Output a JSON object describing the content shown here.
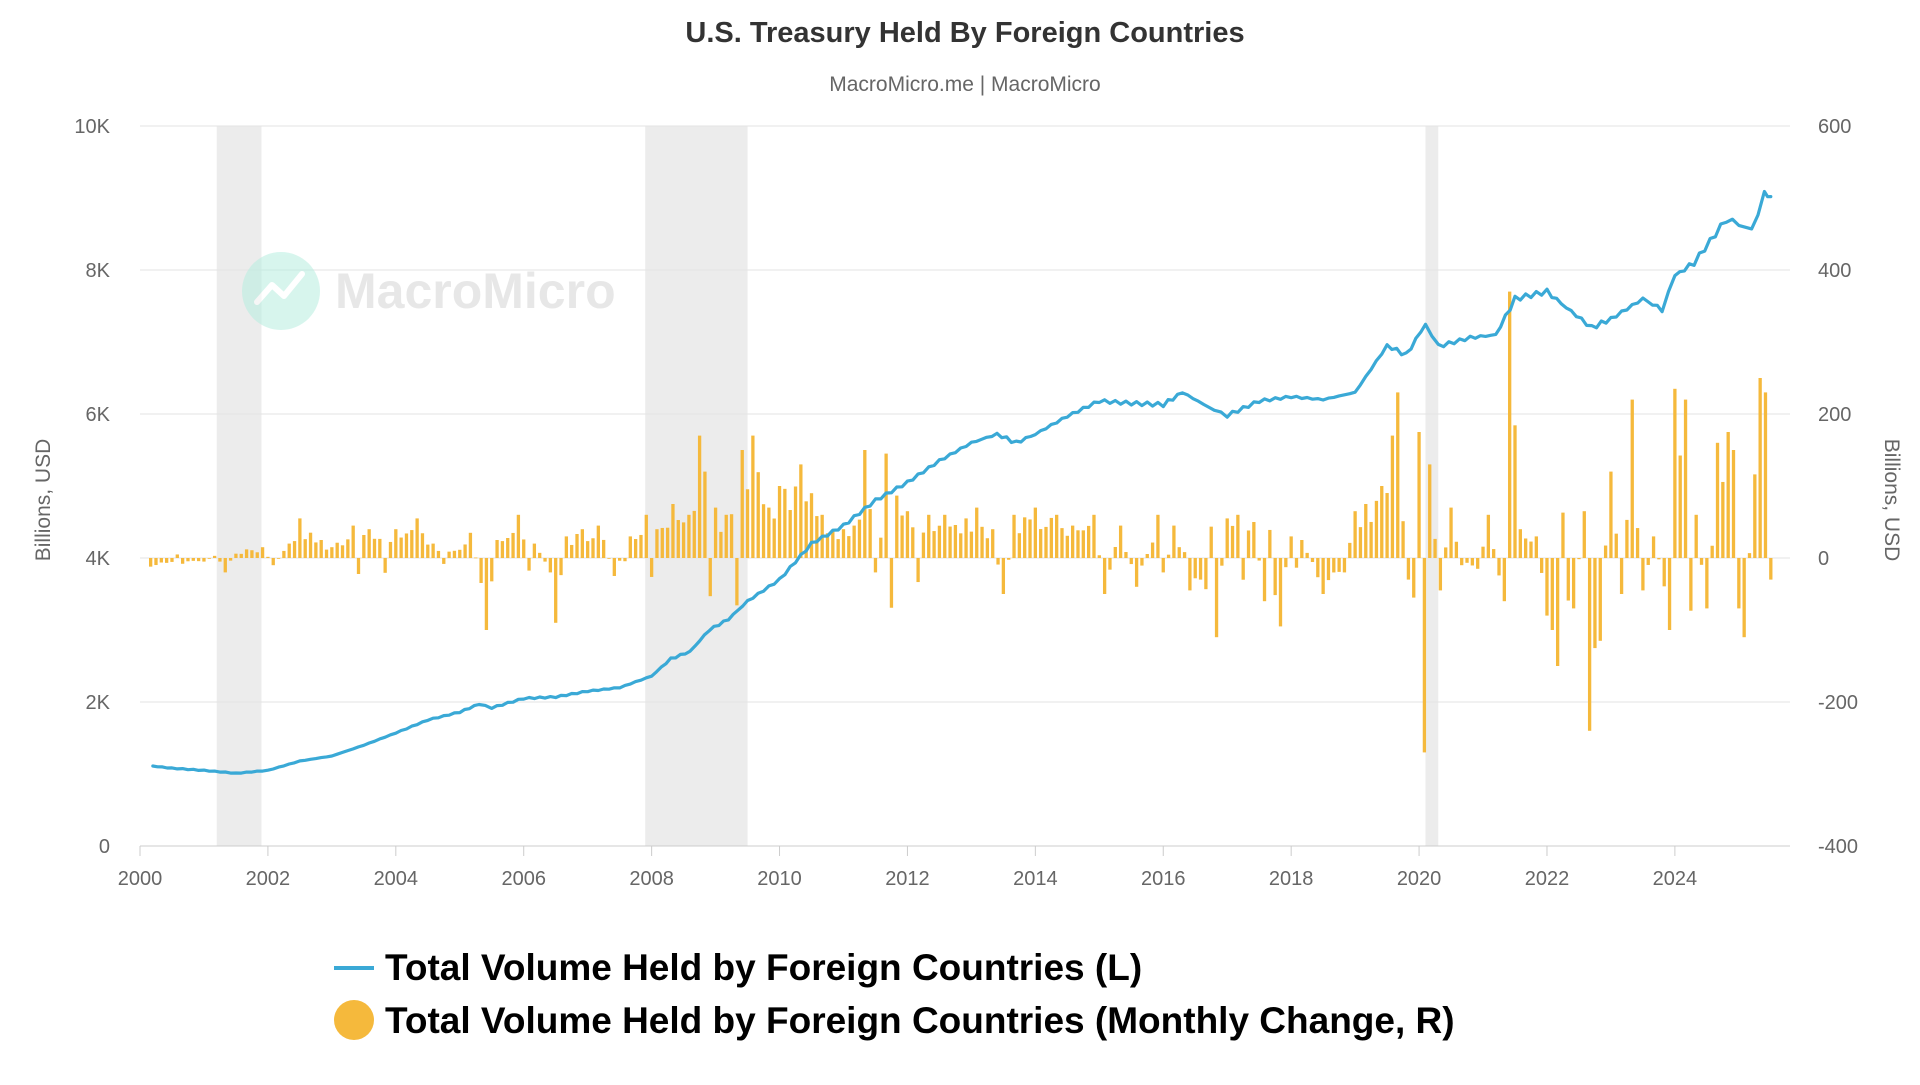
{
  "chart_data": {
    "type": "bar+line",
    "title": "U.S. Treasury Held By Foreign Countries",
    "subtitle": "MacroMicro.me | MacroMicro",
    "watermark": "MacroMicro",
    "y_left": {
      "label": "Billions, USD",
      "lim": [
        0,
        10000
      ],
      "ticks": [
        0,
        2000,
        4000,
        6000,
        8000,
        10000
      ],
      "tick_labels": [
        "0",
        "2K",
        "4K",
        "6K",
        "8K",
        "10K"
      ]
    },
    "y_right": {
      "label": "Billions, USD",
      "lim": [
        -400,
        600
      ],
      "ticks": [
        -400,
        -200,
        0,
        200,
        400,
        600
      ],
      "tick_labels": [
        "-400",
        "-200",
        "0",
        "200",
        "400",
        "600"
      ]
    },
    "x": {
      "lim": [
        2000.0,
        2025.8
      ],
      "ticks": [
        2000,
        2002,
        2004,
        2006,
        2008,
        2010,
        2012,
        2014,
        2016,
        2018,
        2020,
        2022,
        2024
      ],
      "tick_labels": [
        "2000",
        "2002",
        "2004",
        "2006",
        "2008",
        "2010",
        "2012",
        "2014",
        "2016",
        "2018",
        "2020",
        "2022",
        "2024"
      ]
    },
    "recessions": [
      {
        "start": 2001.2,
        "end": 2001.9
      },
      {
        "start": 2007.9,
        "end": 2009.5
      },
      {
        "start": 2020.1,
        "end": 2020.3
      }
    ],
    "legend": {
      "placement": "bottom",
      "line_label": "Total Volume Held by Foreign Countries (L)",
      "bar_label": "Total Volume Held by Foreign Countries (Monthly Change, R)"
    },
    "colors": {
      "line": "#3aa9d6",
      "bar": "#f5b93c",
      "recession": "#ececec",
      "grid": "#e3e3e3",
      "text": "#666666",
      "title": "#333333"
    },
    "line_series": {
      "name": "Total Volume Held by Foreign Countries (L)",
      "points": [
        [
          2000.2,
          1110
        ],
        [
          2000.5,
          1080
        ],
        [
          2001.0,
          1050
        ],
        [
          2001.5,
          1010
        ],
        [
          2002.0,
          1050
        ],
        [
          2002.5,
          1180
        ],
        [
          2003.0,
          1250
        ],
        [
          2003.5,
          1400
        ],
        [
          2004.0,
          1570
        ],
        [
          2004.5,
          1750
        ],
        [
          2005.0,
          1860
        ],
        [
          2005.3,
          1970
        ],
        [
          2005.5,
          1920
        ],
        [
          2006.0,
          2050
        ],
        [
          2006.5,
          2070
        ],
        [
          2007.0,
          2150
        ],
        [
          2007.5,
          2200
        ],
        [
          2008.0,
          2360
        ],
        [
          2008.3,
          2600
        ],
        [
          2008.6,
          2700
        ],
        [
          2008.9,
          3000
        ],
        [
          2009.2,
          3150
        ],
        [
          2009.5,
          3400
        ],
        [
          2010.0,
          3700
        ],
        [
          2010.5,
          4200
        ],
        [
          2011.0,
          4450
        ],
        [
          2011.5,
          4800
        ],
        [
          2012.0,
          5050
        ],
        [
          2012.5,
          5350
        ],
        [
          2013.0,
          5600
        ],
        [
          2013.4,
          5720
        ],
        [
          2013.7,
          5600
        ],
        [
          2014.0,
          5720
        ],
        [
          2014.5,
          5970
        ],
        [
          2015.0,
          6180
        ],
        [
          2015.5,
          6150
        ],
        [
          2016.0,
          6130
        ],
        [
          2016.3,
          6300
        ],
        [
          2016.8,
          6050
        ],
        [
          2017.0,
          5980
        ],
        [
          2017.5,
          6180
        ],
        [
          2018.0,
          6240
        ],
        [
          2018.5,
          6200
        ],
        [
          2019.0,
          6300
        ],
        [
          2019.5,
          6950
        ],
        [
          2019.8,
          6820
        ],
        [
          2020.1,
          7250
        ],
        [
          2020.3,
          6940
        ],
        [
          2020.8,
          7060
        ],
        [
          2021.2,
          7100
        ],
        [
          2021.5,
          7600
        ],
        [
          2022.0,
          7700
        ],
        [
          2022.3,
          7480
        ],
        [
          2022.7,
          7200
        ],
        [
          2023.0,
          7320
        ],
        [
          2023.5,
          7600
        ],
        [
          2023.8,
          7450
        ],
        [
          2024.0,
          7920
        ],
        [
          2024.3,
          8100
        ],
        [
          2024.8,
          8700
        ],
        [
          2025.0,
          8640
        ],
        [
          2025.2,
          8550
        ],
        [
          2025.4,
          9050
        ],
        [
          2025.5,
          9020
        ]
      ]
    },
    "bar_series": {
      "name": "Total Volume Held by Foreign Countries (Monthly Change, R)",
      "anchors": [
        [
          2000.2,
          -12
        ],
        [
          2000.7,
          -8
        ],
        [
          2001.0,
          -5
        ],
        [
          2001.2,
          3
        ],
        [
          2001.3,
          -20
        ],
        [
          2001.5,
          6
        ],
        [
          2001.7,
          12
        ],
        [
          2001.9,
          15
        ],
        [
          2002.1,
          -10
        ],
        [
          2002.3,
          20
        ],
        [
          2002.5,
          55
        ],
        [
          2002.8,
          25
        ],
        [
          2003.0,
          15
        ],
        [
          2003.3,
          45
        ],
        [
          2003.6,
          40
        ],
        [
          2004.0,
          40
        ],
        [
          2004.3,
          55
        ],
        [
          2004.6,
          20
        ],
        [
          2004.9,
          10
        ],
        [
          2005.2,
          35
        ],
        [
          2005.4,
          -100
        ],
        [
          2005.6,
          25
        ],
        [
          2005.9,
          60
        ],
        [
          2006.2,
          20
        ],
        [
          2006.4,
          -20
        ],
        [
          2006.5,
          -90
        ],
        [
          2006.7,
          30
        ],
        [
          2006.9,
          40
        ],
        [
          2007.2,
          45
        ],
        [
          2007.4,
          -25
        ],
        [
          2007.7,
          30
        ],
        [
          2007.9,
          60
        ],
        [
          2008.1,
          40
        ],
        [
          2008.3,
          75
        ],
        [
          2008.6,
          60
        ],
        [
          2008.75,
          170
        ],
        [
          2008.85,
          120
        ],
        [
          2009.0,
          70
        ],
        [
          2009.2,
          60
        ],
        [
          2009.4,
          150
        ],
        [
          2009.6,
          170
        ],
        [
          2009.8,
          70
        ],
        [
          2010.0,
          100
        ],
        [
          2010.3,
          130
        ],
        [
          2010.5,
          90
        ],
        [
          2010.7,
          60
        ],
        [
          2011.0,
          40
        ],
        [
          2011.2,
          45
        ],
        [
          2011.35,
          150
        ],
        [
          2011.5,
          -20
        ],
        [
          2011.7,
          145
        ],
        [
          2012.0,
          65
        ],
        [
          2012.3,
          60
        ],
        [
          2012.6,
          60
        ],
        [
          2012.9,
          55
        ],
        [
          2013.1,
          70
        ],
        [
          2013.3,
          40
        ],
        [
          2013.5,
          -50
        ],
        [
          2013.7,
          60
        ],
        [
          2014.0,
          70
        ],
        [
          2014.3,
          60
        ],
        [
          2014.6,
          45
        ],
        [
          2014.9,
          60
        ],
        [
          2015.1,
          -50
        ],
        [
          2015.3,
          45
        ],
        [
          2015.6,
          -40
        ],
        [
          2015.9,
          60
        ],
        [
          2016.0,
          -20
        ],
        [
          2016.2,
          45
        ],
        [
          2016.4,
          -45
        ],
        [
          2016.6,
          -30
        ],
        [
          2016.8,
          -110
        ],
        [
          2017.0,
          55
        ],
        [
          2017.2,
          60
        ],
        [
          2017.4,
          50
        ],
        [
          2017.6,
          -60
        ],
        [
          2017.8,
          -95
        ],
        [
          2018.0,
          30
        ],
        [
          2018.2,
          25
        ],
        [
          2018.5,
          -50
        ],
        [
          2018.8,
          -20
        ],
        [
          2019.0,
          65
        ],
        [
          2019.2,
          75
        ],
        [
          2019.4,
          100
        ],
        [
          2019.55,
          170
        ],
        [
          2019.65,
          230
        ],
        [
          2019.8,
          -30
        ],
        [
          2019.9,
          -55
        ],
        [
          2020.0,
          175
        ],
        [
          2020.1,
          -270
        ],
        [
          2020.2,
          130
        ],
        [
          2020.3,
          -45
        ],
        [
          2020.5,
          70
        ],
        [
          2020.7,
          -10
        ],
        [
          2020.9,
          -15
        ],
        [
          2021.1,
          60
        ],
        [
          2021.3,
          -60
        ],
        [
          2021.45,
          370
        ],
        [
          2021.6,
          40
        ],
        [
          2021.8,
          30
        ],
        [
          2022.0,
          -80
        ],
        [
          2022.1,
          -100
        ],
        [
          2022.2,
          -150
        ],
        [
          2022.4,
          -70
        ],
        [
          2022.6,
          65
        ],
        [
          2022.7,
          -240
        ],
        [
          2022.8,
          -115
        ],
        [
          2023.0,
          120
        ],
        [
          2023.2,
          -50
        ],
        [
          2023.3,
          220
        ],
        [
          2023.5,
          -45
        ],
        [
          2023.7,
          30
        ],
        [
          2023.9,
          -100
        ],
        [
          2024.0,
          235
        ],
        [
          2024.2,
          220
        ],
        [
          2024.3,
          60
        ],
        [
          2024.5,
          -70
        ],
        [
          2024.7,
          160
        ],
        [
          2024.8,
          175
        ],
        [
          2024.9,
          150
        ],
        [
          2025.0,
          -70
        ],
        [
          2025.1,
          -110
        ],
        [
          2025.3,
          250
        ],
        [
          2025.4,
          230
        ],
        [
          2025.5,
          -30
        ]
      ]
    }
  }
}
